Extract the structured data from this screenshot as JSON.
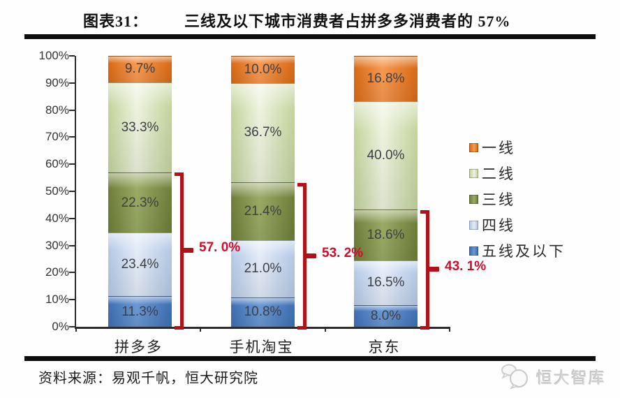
{
  "header": {
    "tag": "图表31：",
    "title": "三线及以下城市消费者占拼多多消费者的 57%"
  },
  "chart_data": {
    "type": "stacked_bar",
    "normalized_to_100_percent": true,
    "title": "三线及以下城市消费者占拼多多消费者的 57%",
    "categories": [
      "拼多多",
      "手机淘宝",
      "京东"
    ],
    "series": [
      {
        "name": "一线",
        "values": [
          9.7,
          10.0,
          16.8
        ],
        "swatch": "#e8782a",
        "edge": "#d96a16",
        "center": "#f79a52"
      },
      {
        "name": "二线",
        "values": [
          33.3,
          36.7,
          40.0
        ],
        "swatch": "#dbe6c0",
        "edge": "#c3d49c",
        "center": "#eef3e0"
      },
      {
        "name": "三线",
        "values": [
          22.3,
          21.4,
          18.6
        ],
        "swatch": "#7d8c45",
        "edge": "#6f7e38",
        "center": "#9aab65"
      },
      {
        "name": "四线",
        "values": [
          23.4,
          21.0,
          16.5
        ],
        "swatch": "#c3d4eb",
        "edge": "#b4c8e6",
        "center": "#e4ecf8"
      },
      {
        "name": "五线及以下",
        "values": [
          11.3,
          10.8,
          8.0
        ],
        "swatch": "#4f81bd",
        "edge": "#3e6fb3",
        "center": "#6b98d3"
      }
    ],
    "y_ticks": [
      "100%",
      "90%",
      "80%",
      "70%",
      "60%",
      "50%",
      "40%",
      "30%",
      "20%",
      "10%",
      "0%"
    ],
    "ylim": [
      0,
      100
    ],
    "grid": false,
    "legend_position": "right",
    "annotations": [
      {
        "category": "拼多多",
        "label": "57. 0%",
        "span_pct": 57.0
      },
      {
        "category": "手机淘宝",
        "label": "53. 2%",
        "span_pct": 53.2
      },
      {
        "category": "京东",
        "label": "43. 1%",
        "span_pct": 43.1
      }
    ]
  },
  "footer": {
    "source": "资料来源：易观千帆，恒大研究院",
    "watermark": "恒大智库"
  },
  "colors": {
    "bracket": "#b01218",
    "bracket_label": "#ce0e2d",
    "rule": "#0d0d0d",
    "axis": "#2b2b2b"
  }
}
